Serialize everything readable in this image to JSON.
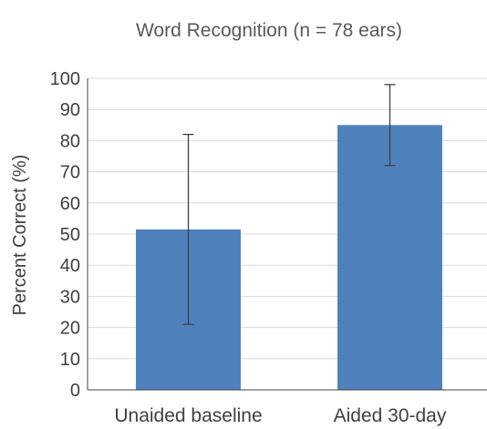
{
  "chart_data": {
    "type": "bar",
    "title": "Word Recognition (n = 78 ears)",
    "xlabel": "",
    "ylabel": "Percent Correct (%)",
    "categories": [
      "Unaided baseline",
      "Aided 30-day"
    ],
    "values": [
      51.5,
      85
    ],
    "error_bars": [
      {
        "low": 21,
        "high": 82
      },
      {
        "low": 72,
        "high": 98
      }
    ],
    "ylim": [
      0,
      100
    ],
    "yticks": [
      0,
      10,
      20,
      30,
      40,
      50,
      60,
      70,
      80,
      90,
      100
    ],
    "grid": true,
    "legend": "none",
    "colors": {
      "bar": "#4f81bd",
      "grid": "#d9d9d9",
      "axis": "#404040",
      "error_bar": "#404040"
    }
  }
}
